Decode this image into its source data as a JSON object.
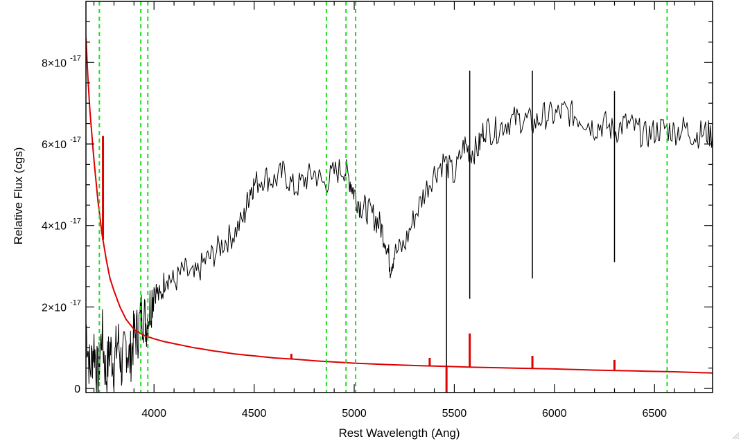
{
  "chart_data": {
    "type": "line",
    "title": "",
    "xlabel": "Rest Wavelength (Ang)",
    "ylabel": "Relative Flux (cgs)",
    "xlim": [
      3660,
      6790
    ],
    "ylim": [
      -1e-18,
      9.5e-17
    ],
    "x_ticks": [
      {
        "value": 4000,
        "label": "4000"
      },
      {
        "value": 4500,
        "label": "4500"
      },
      {
        "value": 5000,
        "label": "5000"
      },
      {
        "value": 5500,
        "label": "5500"
      },
      {
        "value": 6000,
        "label": "6000"
      },
      {
        "value": 6500,
        "label": "6500"
      }
    ],
    "y_ticks": [
      {
        "value": 0,
        "mantissa": "0",
        "exponent": ""
      },
      {
        "value": 2e-17,
        "mantissa": "2×10",
        "exponent": "-17"
      },
      {
        "value": 4e-17,
        "mantissa": "4×10",
        "exponent": "-17"
      },
      {
        "value": 6e-17,
        "mantissa": "6×10",
        "exponent": "-17"
      },
      {
        "value": 8e-17,
        "mantissa": "8×10",
        "exponent": "-17"
      }
    ],
    "grid": false,
    "vertical_lines": {
      "color": "#22dd22",
      "style": "dashed",
      "x": [
        3727,
        3934,
        3969,
        4861,
        4959,
        5007,
        6563
      ]
    },
    "series": [
      {
        "color": "#000000",
        "x": [
          3660,
          3680,
          3700,
          3720,
          3740,
          3760,
          3780,
          3800,
          3820,
          3840,
          3860,
          3880,
          3900,
          3920,
          3940,
          3960,
          3980,
          4000,
          4030,
          4060,
          4100,
          4150,
          4200,
          4250,
          4300,
          4350,
          4400,
          4450,
          4480,
          4500,
          4550,
          4600,
          4650,
          4700,
          4750,
          4800,
          4850,
          4900,
          4950,
          4980,
          5000,
          5030,
          5060,
          5100,
          5130,
          5160,
          5180,
          5200,
          5250,
          5300,
          5350,
          5400,
          5450,
          5500,
          5550,
          5580,
          5620,
          5650,
          5700,
          5750,
          5800,
          5850,
          5900,
          5950,
          6000,
          6050,
          6100,
          6150,
          6200,
          6250,
          6300,
          6350,
          6400,
          6450,
          6500,
          6550,
          6600,
          6650,
          6700,
          6750,
          6790
        ],
        "y": [
          1.6e-17,
          4e-18,
          1.1e-17,
          2e-18,
          1.4e-17,
          3e-18,
          1e-17,
          6e-18,
          1.2e-17,
          5e-18,
          1.1e-17,
          7e-18,
          1.3e-17,
          1.4e-17,
          1.9e-17,
          1.6e-17,
          2e-17,
          2.5e-17,
          2.2e-17,
          2.8e-17,
          2.6e-17,
          2.9e-17,
          2.7e-17,
          3.1e-17,
          3.3e-17,
          3.6e-17,
          3.8e-17,
          4.2e-17,
          4.9e-17,
          5e-17,
          5.2e-17,
          5.1e-17,
          5.3e-17,
          4.9e-17,
          5.1e-17,
          5.3e-17,
          5e-17,
          5.3e-17,
          5.4e-17,
          5.1e-17,
          4.8e-17,
          4.5e-17,
          4.4e-17,
          4.2e-17,
          4e-17,
          3.6e-17,
          3e-17,
          3.3e-17,
          3.5e-17,
          4.2e-17,
          4.8e-17,
          5.3e-17,
          5.6e-17,
          5.2e-17,
          6e-17,
          5.8e-17,
          5.9e-17,
          6.4e-17,
          6.3e-17,
          6.5e-17,
          6.6e-17,
          6.6e-17,
          6.5e-17,
          6.7e-17,
          6.7e-17,
          6.8e-17,
          6.7e-17,
          6.6e-17,
          6.4e-17,
          6.5e-17,
          6.3e-17,
          6.5e-17,
          6.4e-17,
          6.2e-17,
          6.3e-17,
          6.4e-17,
          6.3e-17,
          6.4e-17,
          6.2e-17,
          6.3e-17,
          6.2e-17
        ]
      },
      {
        "color": "#dd0000",
        "x": [
          3660,
          3670,
          3680,
          3700,
          3720,
          3740,
          3760,
          3780,
          3800,
          3830,
          3860,
          3900,
          3950,
          4000,
          4050,
          4100,
          4200,
          4300,
          4400,
          4500,
          4600,
          4700,
          4800,
          4900,
          5000,
          5200,
          5400,
          5600,
          5800,
          6000,
          6200,
          6400,
          6600,
          6790
        ],
        "y": [
          8.6e-17,
          7.6e-17,
          6.8e-17,
          5.6e-17,
          4.6e-17,
          3.8e-17,
          3.2e-17,
          2.7e-17,
          2.4e-17,
          2e-17,
          1.7e-17,
          1.45e-17,
          1.3e-17,
          1.22e-17,
          1.15e-17,
          1.1e-17,
          1e-17,
          9.2e-18,
          8.5e-18,
          8e-18,
          7.5e-18,
          7.2e-18,
          6.8e-18,
          6.5e-18,
          6.2e-18,
          5.8e-18,
          5.5e-18,
          5.2e-18,
          5e-18,
          4.8e-18,
          4.5e-18,
          4.3e-18,
          4.1e-18,
          3.8e-18
        ]
      }
    ],
    "spikes": [
      {
        "series": 0,
        "x": 5461,
        "y": -1e-18
      },
      {
        "series": 0,
        "x": 5577,
        "y": 2.2e-17
      },
      {
        "series": 0,
        "x": 5890,
        "y": 2.7e-17
      },
      {
        "series": 0,
        "x": 6300,
        "y": 3.1e-17
      },
      {
        "series": 0,
        "x": 5577,
        "y": 7.8e-17
      },
      {
        "series": 0,
        "x": 5890,
        "y": 7.8e-17
      },
      {
        "series": 0,
        "x": 6300,
        "y": 7.3e-17
      },
      {
        "series": 1,
        "x": 3745,
        "y": 6.2e-17
      },
      {
        "series": 1,
        "x": 4686,
        "y": 8.5e-18
      },
      {
        "series": 1,
        "x": 5377,
        "y": 7.5e-18
      },
      {
        "series": 1,
        "x": 5461,
        "y": -1e-18
      },
      {
        "series": 1,
        "x": 5577,
        "y": 1.35e-17
      },
      {
        "series": 1,
        "x": 5890,
        "y": 8e-18
      },
      {
        "series": 1,
        "x": 6300,
        "y": 7e-18
      }
    ]
  }
}
